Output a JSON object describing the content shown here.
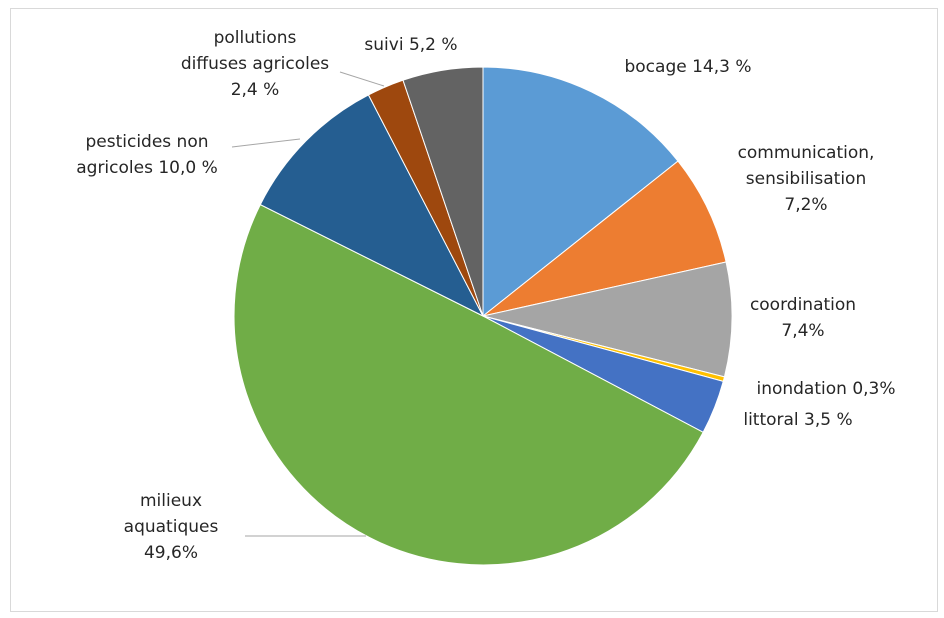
{
  "chart_data": {
    "type": "pie",
    "title": "",
    "start_angle_deg": 0,
    "direction": "clockwise",
    "legend": "none",
    "slices": [
      {
        "value": 14.3,
        "color": "#5b9bd5",
        "label_lines": [
          "bocage 14,3 %"
        ]
      },
      {
        "value": 7.2,
        "color": "#ed7d31",
        "label_lines": [
          "communication,",
          "sensibilisation",
          "7,2%"
        ]
      },
      {
        "value": 7.4,
        "color": "#a5a5a5",
        "label_lines": [
          "coordination",
          "7,4%"
        ]
      },
      {
        "value": 0.3,
        "color": "#ffc000",
        "label_lines": [
          "inondation 0,3%"
        ]
      },
      {
        "value": 3.5,
        "color": "#4472c4",
        "label_lines": [
          "littoral 3,5 %"
        ]
      },
      {
        "value": 49.6,
        "color": "#70ad47",
        "label_lines": [
          "milieux",
          "aquatiques",
          "49,6%"
        ]
      },
      {
        "value": 10.0,
        "color": "#255e91",
        "label_lines": [
          "pesticides non",
          "agricoles 10,0 %"
        ]
      },
      {
        "value": 2.4,
        "color": "#9e480e",
        "label_lines": [
          "pollutions",
          "diffuses agricoles",
          "2,4 %"
        ]
      },
      {
        "value": 5.2,
        "color": "#636363",
        "label_lines": [
          "suivi 5,2 %"
        ]
      }
    ]
  }
}
